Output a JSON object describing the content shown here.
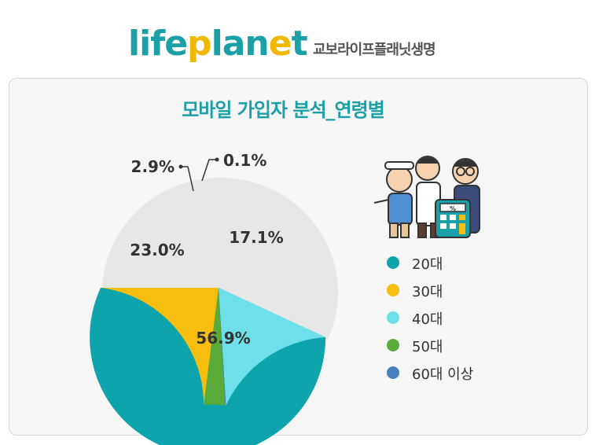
{
  "header": {
    "logo_text": "lifeplanet",
    "company_name": "교보라이프플래닛생명"
  },
  "chart_data": {
    "type": "pie",
    "title": "모바일 가입자 분석_연령별",
    "categories": [
      "20대",
      "30대",
      "40대",
      "50대",
      "60대 이상"
    ],
    "values": [
      56.9,
      23.0,
      17.1,
      2.9,
      0.1
    ],
    "labels": [
      "56.9%",
      "23.0%",
      "17.1%",
      "2.9%",
      "0.1%"
    ],
    "colors": [
      "#0da4ac",
      "#f7bd0f",
      "#6ee0ea",
      "#5aaa3a",
      "#4a7fc0"
    ],
    "legend_position": "right"
  },
  "illustration": {
    "icon": "seniors-with-calculator-icon",
    "calc_label": "%"
  }
}
